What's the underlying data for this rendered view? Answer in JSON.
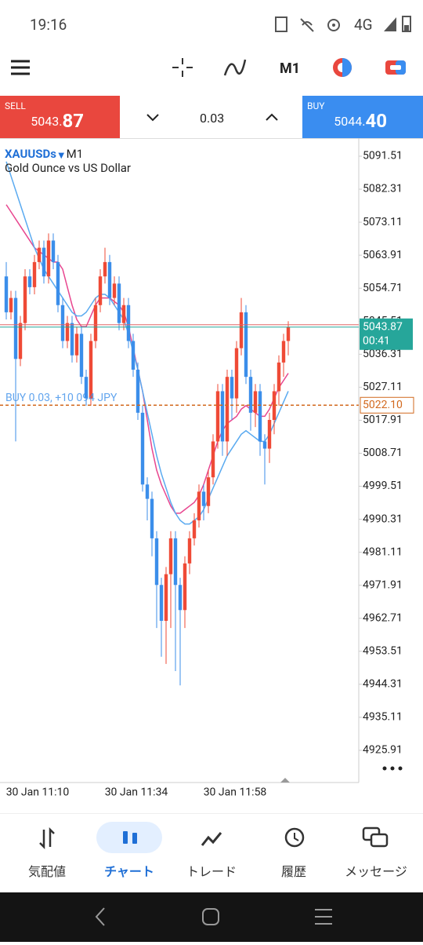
{
  "status_bar": {
    "time": "19:16",
    "network": "4G"
  },
  "toolbar": {
    "timeframe": "M1"
  },
  "trade_panel": {
    "sell": {
      "label": "SELL",
      "price_main": "5043.",
      "price_frac": "87"
    },
    "volume": "0.03",
    "buy": {
      "label": "BUY",
      "price_main": "5044.",
      "price_frac": "40"
    }
  },
  "chart_data": {
    "type": "candlestick",
    "symbol": "XAUUSDs",
    "timeframe": "M1",
    "description": "Gold Ounce vs US Dollar",
    "up_color": "#ef4a36",
    "down_color": "#3b8eea",
    "open": [
      5058,
      5048,
      5052,
      5035,
      5045,
      5058,
      5055,
      5062,
      5066,
      5058,
      5068,
      5062,
      5050,
      5040,
      5045,
      5036,
      5042,
      5030,
      5024,
      5040,
      5050,
      5058,
      5062,
      5052,
      5056,
      5045,
      5050,
      5040,
      5032,
      5020,
      5000,
      4996,
      4985,
      4972,
      4962,
      4975,
      4985,
      4972,
      4965,
      4978,
      4985,
      4990,
      4998,
      4994,
      5002,
      5012,
      5026,
      5012,
      5030,
      5024,
      5038,
      5048,
      5030,
      5020,
      5026,
      5012,
      5010,
      5018,
      5026,
      5034,
      5040
    ],
    "high": [
      5062,
      5054,
      5054,
      5047,
      5060,
      5060,
      5064,
      5068,
      5068,
      5070,
      5070,
      5064,
      5052,
      5047,
      5047,
      5044,
      5044,
      5032,
      5042,
      5052,
      5060,
      5066,
      5064,
      5058,
      5058,
      5052,
      5052,
      5042,
      5034,
      5022,
      5002,
      4998,
      4987,
      4974,
      4977,
      4987,
      4987,
      4974,
      4980,
      4987,
      4992,
      5000,
      5000,
      5004,
      5014,
      5028,
      5028,
      5032,
      5032,
      5040,
      5052,
      5050,
      5032,
      5028,
      5028,
      5014,
      5020,
      5028,
      5036,
      5042,
      5045.5
    ],
    "low": [
      5046,
      5046,
      5012,
      5033,
      5043,
      5053,
      5053,
      5060,
      5056,
      5056,
      5060,
      5048,
      5038,
      5038,
      5034,
      5034,
      5028,
      5022,
      5022,
      5038,
      5048,
      5056,
      5050,
      5050,
      5043,
      5043,
      5038,
      5030,
      5018,
      4998,
      4990,
      4980,
      4960,
      4952,
      4950,
      4960,
      4948,
      4944,
      4960,
      4975,
      4983,
      4988,
      4990,
      4992,
      5000,
      5010,
      5008,
      5008,
      5018,
      5020,
      5036,
      5028,
      5015,
      5016,
      5008,
      5000,
      5006,
      5014,
      5022,
      5030,
      5036
    ],
    "close": [
      5048,
      5052,
      5035,
      5045,
      5058,
      5055,
      5062,
      5066,
      5058,
      5068,
      5062,
      5050,
      5040,
      5045,
      5036,
      5042,
      5030,
      5024,
      5040,
      5050,
      5058,
      5062,
      5052,
      5056,
      5045,
      5050,
      5040,
      5032,
      5020,
      5000,
      4996,
      4985,
      4972,
      4962,
      4975,
      4985,
      4972,
      4965,
      4978,
      4985,
      4990,
      4998,
      4994,
      5002,
      5012,
      5026,
      5012,
      5030,
      5024,
      5038,
      5048,
      5030,
      5020,
      5026,
      5012,
      5010,
      5018,
      5026,
      5034,
      5040,
      5043.87
    ],
    "moving_averages": [
      {
        "color": "#e8468f",
        "values": [
          5078,
          5076,
          5074,
          5072,
          5070,
          5068,
          5066,
          5065,
          5064,
          5063,
          5062,
          5062,
          5060,
          5055,
          5050,
          5046,
          5044,
          5044,
          5047,
          5050,
          5052,
          5052,
          5052,
          5051,
          5050,
          5048,
          5044,
          5038,
          5032,
          5026,
          5018,
          5010,
          5004,
          5000,
          4997,
          4994,
          4992,
          4992,
          4993,
          4994,
          4995,
          4997,
          5000,
          5004,
          5008,
          5012,
          5015,
          5017,
          5018,
          5019,
          5021,
          5022,
          5021,
          5020,
          5019,
          5019,
          5021,
          5024,
          5027,
          5029,
          5031
        ]
      },
      {
        "color": "#5aaaf0",
        "values": [
          5090,
          5086,
          5082,
          5078,
          5074,
          5070,
          5066,
          5063,
          5060,
          5058,
          5056,
          5054,
          5052,
          5050,
          5048,
          5047,
          5047,
          5048,
          5050,
          5052,
          5053,
          5053,
          5052,
          5050,
          5048,
          5046,
          5042,
          5037,
          5032,
          5026,
          5020,
          5014,
          5008,
          5003,
          4999,
          4995,
          4992,
          4990,
          4989,
          4989,
          4990,
          4991,
          4993,
          4996,
          4999,
          5002,
          5005,
          5008,
          5010,
          5012,
          5014,
          5015,
          5014,
          5013,
          5012,
          5012,
          5014,
          5017,
          5020,
          5023,
          5026
        ]
      }
    ],
    "ylim": [
      4916.93,
      5096.54
    ],
    "yticks": [
      5091.51,
      5082.31,
      5073.11,
      5063.91,
      5054.71,
      5045.51,
      5036.31,
      5027.11,
      5017.91,
      5008.71,
      4999.51,
      4990.31,
      4981.11,
      4971.91,
      4962.71,
      4953.51,
      4944.31,
      4935.11,
      4925.91
    ],
    "x_labels": [
      "30 Jan 11:10",
      "30 Jan 11:34",
      "30 Jan 11:58"
    ],
    "current_price": {
      "value": 5043.87,
      "timer": "00:41"
    },
    "position": {
      "label": "BUY 0.03, +10 094 JPY",
      "price": {
        "value": 5022.1,
        "label": "5022.10"
      }
    }
  },
  "nav": {
    "items": [
      "気配値",
      "チャート",
      "トレード",
      "履歴",
      "メッセージ"
    ]
  }
}
